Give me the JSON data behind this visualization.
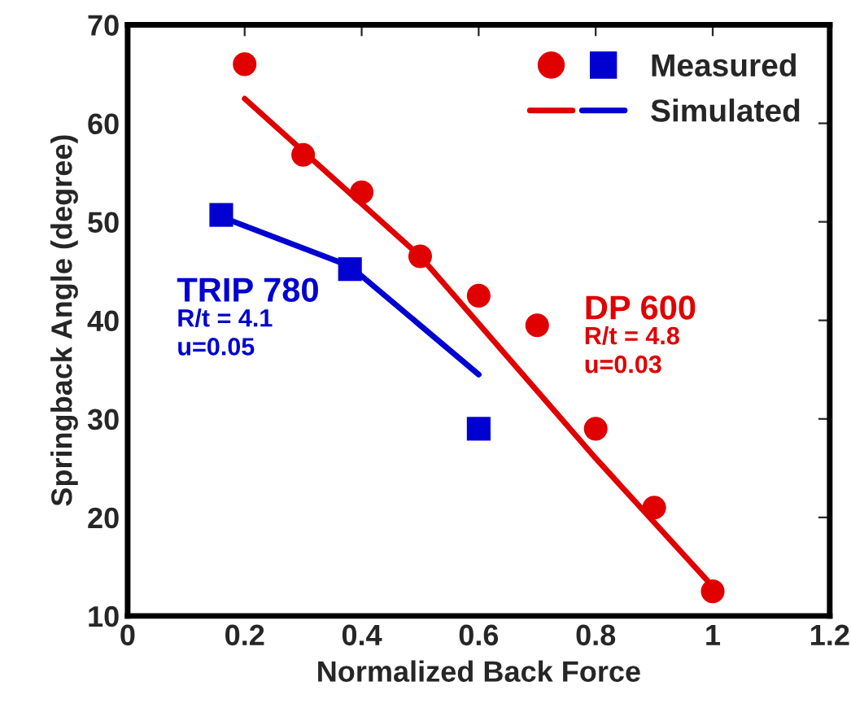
{
  "chart_data": {
    "type": "scatter",
    "xlabel": "Normalized Back Force",
    "ylabel": "Springback Angle (degree)",
    "xlim": [
      0,
      1.2
    ],
    "xticks": [
      0,
      0.2,
      0.4,
      0.6,
      0.8,
      1,
      1.2
    ],
    "ylim": [
      10,
      70
    ],
    "yticks": [
      10,
      20,
      30,
      40,
      50,
      60,
      70
    ],
    "grid": false,
    "legend": "top right",
    "series": [
      {
        "marker": "circle",
        "color": "#e00000",
        "x": [
          0.2,
          0.3,
          0.4,
          0.5,
          0.6,
          0.7,
          0.8,
          0.9,
          1.0
        ],
        "values": [
          66,
          56.8,
          53,
          46.5,
          42.5,
          39.5,
          29,
          21,
          12.5
        ]
      },
      {
        "name": "Measured",
        "marker": "square",
        "color": "#0000d0",
        "x": [
          0.16,
          0.38,
          0.6
        ],
        "values": [
          50.7,
          45.2,
          29
        ]
      },
      {
        "type": "line",
        "marker": "none",
        "color": "#e00000",
        "x": [
          0.2,
          0.5,
          0.8,
          1.0
        ],
        "values": [
          62.5,
          46.5,
          26,
          13
        ]
      },
      {
        "name": "Simulated",
        "type": "line",
        "marker": "none",
        "color": "#0000d0",
        "x": [
          0.16,
          0.38,
          0.6
        ],
        "values": [
          50.5,
          45.5,
          34.5
        ]
      }
    ],
    "annotations": [
      "TRIP 780\nR/t = 4.1\nu=0.05",
      "DP 600\nR/t = 4.8\nu=0.03"
    ]
  }
}
